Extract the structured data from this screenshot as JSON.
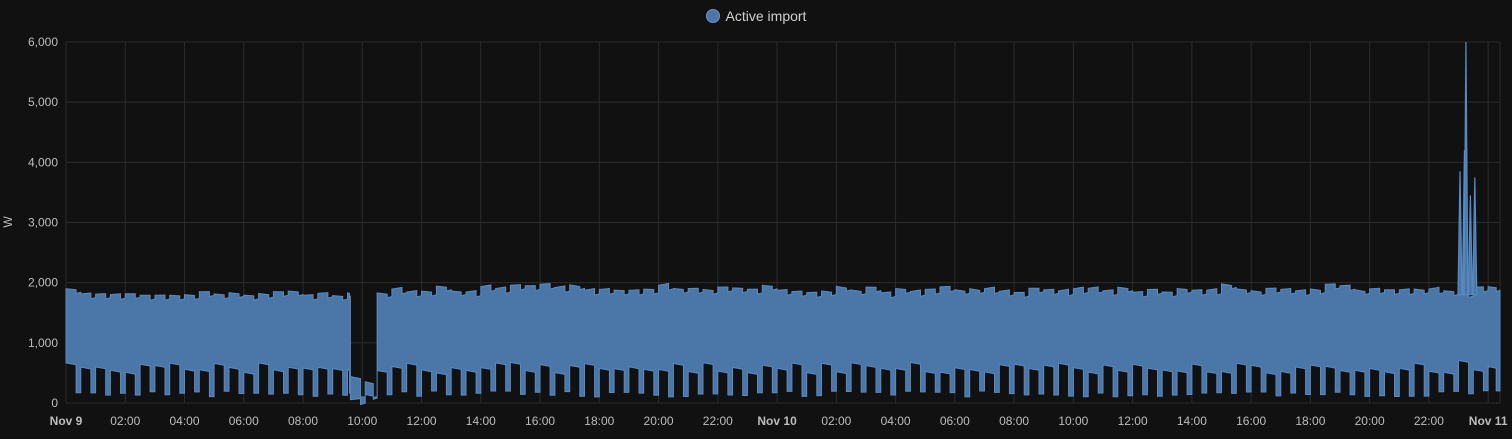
{
  "colors": {
    "background": "#111111",
    "grid": "#2c2c2c",
    "axis_text": "#bdbdbd",
    "series_fill": "#4a77a8",
    "series_line": "#5b8ac0"
  },
  "legend": {
    "label": "Active import"
  },
  "chart_data": {
    "type": "area",
    "ylabel": "W",
    "ylim": [
      0,
      6000
    ],
    "yticks": [
      0,
      1000,
      2000,
      3000,
      4000,
      5000,
      6000
    ],
    "ytick_labels": [
      "0",
      "1,000",
      "2,000",
      "3,000",
      "4,000",
      "5,000",
      "6,000"
    ],
    "xlim_hours": [
      0,
      48.4
    ],
    "xticks": [
      {
        "label": "Nov 9",
        "hour": 0,
        "bold": true
      },
      {
        "label": "02:00",
        "hour": 2,
        "bold": false
      },
      {
        "label": "04:00",
        "hour": 4,
        "bold": false
      },
      {
        "label": "06:00",
        "hour": 6,
        "bold": false
      },
      {
        "label": "08:00",
        "hour": 8,
        "bold": false
      },
      {
        "label": "10:00",
        "hour": 10,
        "bold": false
      },
      {
        "label": "12:00",
        "hour": 12,
        "bold": false
      },
      {
        "label": "14:00",
        "hour": 14,
        "bold": false
      },
      {
        "label": "16:00",
        "hour": 16,
        "bold": false
      },
      {
        "label": "18:00",
        "hour": 18,
        "bold": false
      },
      {
        "label": "20:00",
        "hour": 20,
        "bold": false
      },
      {
        "label": "22:00",
        "hour": 22,
        "bold": false
      },
      {
        "label": "Nov 10",
        "hour": 24,
        "bold": true
      },
      {
        "label": "02:00",
        "hour": 26,
        "bold": false
      },
      {
        "label": "04:00",
        "hour": 28,
        "bold": false
      },
      {
        "label": "06:00",
        "hour": 30,
        "bold": false
      },
      {
        "label": "08:00",
        "hour": 32,
        "bold": false
      },
      {
        "label": "10:00",
        "hour": 34,
        "bold": false
      },
      {
        "label": "12:00",
        "hour": 36,
        "bold": false
      },
      {
        "label": "14:00",
        "hour": 38,
        "bold": false
      },
      {
        "label": "16:00",
        "hour": 40,
        "bold": false
      },
      {
        "label": "18:00",
        "hour": 42,
        "bold": false
      },
      {
        "label": "20:00",
        "hour": 44,
        "bold": false
      },
      {
        "label": "22:00",
        "hour": 46,
        "bold": false
      },
      {
        "label": "Nov 11",
        "hour": 48,
        "bold": true
      }
    ],
    "series": [
      {
        "name": "Active import",
        "description": "Cyclic load oscillating roughly between a low and a high level; values given as segments of high and low bounds",
        "segments": [
          {
            "x0": 0.0,
            "x1": 9.6,
            "low": 350,
            "high": 1900
          },
          {
            "x0": 9.6,
            "x1": 10.5,
            "low": 130,
            "high": 150
          },
          {
            "x0": 10.5,
            "x1": 14.5,
            "low": 350,
            "high": 1950
          },
          {
            "x0": 14.5,
            "x1": 24.0,
            "low": 350,
            "high": 1980
          },
          {
            "x0": 24.0,
            "x1": 38.0,
            "low": 350,
            "high": 1950
          },
          {
            "x0": 38.0,
            "x1": 47.0,
            "low": 350,
            "high": 1980
          },
          {
            "x0": 47.0,
            "x1": 48.4,
            "low": 400,
            "high": 1950
          }
        ],
        "spikes": [
          {
            "x": 47.05,
            "y": 3850
          },
          {
            "x": 47.2,
            "y": 4200
          },
          {
            "x": 47.25,
            "y": 6000
          },
          {
            "x": 47.4,
            "y": 3450
          },
          {
            "x": 47.55,
            "y": 3750
          }
        ]
      }
    ]
  }
}
